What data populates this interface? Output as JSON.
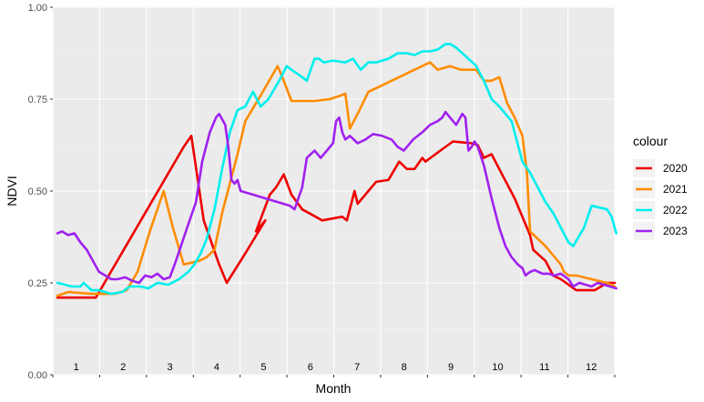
{
  "chart_data": {
    "type": "line",
    "xlabel": "Month",
    "ylabel": "NDVI",
    "ylim": [
      0,
      1
    ],
    "xlim": [
      0,
      365
    ],
    "y_ticks": [
      "0.00",
      "0.25",
      "0.50",
      "0.75",
      "1.00"
    ],
    "y_tick_values": [
      0,
      0.25,
      0.5,
      0.75,
      1.0
    ],
    "months": [
      "1",
      "2",
      "3",
      "4",
      "5",
      "6",
      "7",
      "8",
      "9",
      "10",
      "11",
      "12"
    ],
    "grid": true,
    "legend_title": "colour",
    "legend_position": "right",
    "series": [
      {
        "name": "2020",
        "color": "#ee0000",
        "points": [
          [
            3,
            0.21
          ],
          [
            15,
            0.21
          ],
          [
            28,
            0.21
          ],
          [
            60,
            0.44
          ],
          [
            85,
            0.62
          ],
          [
            90,
            0.65
          ],
          [
            98,
            0.42
          ],
          [
            108,
            0.3
          ],
          [
            113,
            0.25
          ],
          [
            125,
            0.33
          ],
          [
            138,
            0.42
          ],
          [
            132,
            0.39
          ],
          [
            141,
            0.49
          ],
          [
            145,
            0.51
          ],
          [
            150,
            0.545
          ],
          [
            155,
            0.49
          ],
          [
            162,
            0.45
          ],
          [
            175,
            0.42
          ],
          [
            188,
            0.43
          ],
          [
            191,
            0.42
          ],
          [
            196,
            0.5
          ],
          [
            198,
            0.465
          ],
          [
            205,
            0.5
          ],
          [
            210,
            0.525
          ],
          [
            218,
            0.53
          ],
          [
            225,
            0.58
          ],
          [
            230,
            0.56
          ],
          [
            235,
            0.56
          ],
          [
            240,
            0.59
          ],
          [
            242,
            0.58
          ],
          [
            255,
            0.62
          ],
          [
            260,
            0.635
          ],
          [
            272,
            0.63
          ],
          [
            276,
            0.625
          ],
          [
            280,
            0.59
          ],
          [
            285,
            0.6
          ],
          [
            290,
            0.56
          ],
          [
            300,
            0.48
          ],
          [
            310,
            0.38
          ],
          [
            312,
            0.34
          ],
          [
            320,
            0.31
          ],
          [
            325,
            0.27
          ],
          [
            330,
            0.26
          ],
          [
            340,
            0.23
          ],
          [
            352,
            0.23
          ],
          [
            360,
            0.25
          ],
          [
            365,
            0.25
          ]
        ]
      },
      {
        "name": "2021",
        "color": "#ff8c00",
        "points": [
          [
            3,
            0.215
          ],
          [
            10,
            0.225
          ],
          [
            25,
            0.22
          ],
          [
            40,
            0.22
          ],
          [
            48,
            0.23
          ],
          [
            55,
            0.28
          ],
          [
            63,
            0.39
          ],
          [
            72,
            0.5
          ],
          [
            78,
            0.4
          ],
          [
            85,
            0.3
          ],
          [
            95,
            0.31
          ],
          [
            100,
            0.32
          ],
          [
            105,
            0.34
          ],
          [
            110,
            0.44
          ],
          [
            120,
            0.6
          ],
          [
            125,
            0.69
          ],
          [
            135,
            0.76
          ],
          [
            146,
            0.84
          ],
          [
            150,
            0.8
          ],
          [
            155,
            0.745
          ],
          [
            163,
            0.745
          ],
          [
            170,
            0.745
          ],
          [
            180,
            0.75
          ],
          [
            187,
            0.76
          ],
          [
            190,
            0.765
          ],
          [
            193,
            0.67
          ],
          [
            198,
            0.71
          ],
          [
            205,
            0.77
          ],
          [
            210,
            0.78
          ],
          [
            225,
            0.81
          ],
          [
            240,
            0.84
          ],
          [
            245,
            0.85
          ],
          [
            250,
            0.83
          ],
          [
            258,
            0.84
          ],
          [
            265,
            0.83
          ],
          [
            270,
            0.83
          ],
          [
            275,
            0.83
          ],
          [
            280,
            0.8
          ],
          [
            285,
            0.8
          ],
          [
            290,
            0.81
          ],
          [
            295,
            0.74
          ],
          [
            300,
            0.7
          ],
          [
            305,
            0.65
          ],
          [
            308,
            0.55
          ],
          [
            310,
            0.39
          ],
          [
            320,
            0.35
          ],
          [
            330,
            0.3
          ],
          [
            332,
            0.28
          ],
          [
            335,
            0.27
          ],
          [
            340,
            0.27
          ],
          [
            350,
            0.26
          ],
          [
            360,
            0.25
          ],
          [
            365,
            0.24
          ]
        ]
      },
      {
        "name": "2022",
        "color": "#00eeee",
        "points": [
          [
            3,
            0.25
          ],
          [
            8,
            0.245
          ],
          [
            12,
            0.24
          ],
          [
            18,
            0.24
          ],
          [
            20,
            0.25
          ],
          [
            25,
            0.23
          ],
          [
            30,
            0.23
          ],
          [
            38,
            0.22
          ],
          [
            45,
            0.225
          ],
          [
            50,
            0.24
          ],
          [
            57,
            0.24
          ],
          [
            62,
            0.235
          ],
          [
            68,
            0.25
          ],
          [
            75,
            0.245
          ],
          [
            82,
            0.26
          ],
          [
            88,
            0.28
          ],
          [
            92,
            0.3
          ],
          [
            96,
            0.33
          ],
          [
            100,
            0.37
          ],
          [
            105,
            0.45
          ],
          [
            110,
            0.56
          ],
          [
            115,
            0.66
          ],
          [
            120,
            0.72
          ],
          [
            125,
            0.73
          ],
          [
            130,
            0.77
          ],
          [
            135,
            0.73
          ],
          [
            140,
            0.75
          ],
          [
            147,
            0.8
          ],
          [
            152,
            0.84
          ],
          [
            155,
            0.83
          ],
          [
            162,
            0.81
          ],
          [
            165,
            0.8
          ],
          [
            170,
            0.86
          ],
          [
            173,
            0.86
          ],
          [
            176,
            0.85
          ],
          [
            182,
            0.855
          ],
          [
            190,
            0.85
          ],
          [
            195,
            0.86
          ],
          [
            200,
            0.83
          ],
          [
            205,
            0.85
          ],
          [
            210,
            0.85
          ],
          [
            218,
            0.86
          ],
          [
            224,
            0.875
          ],
          [
            230,
            0.875
          ],
          [
            235,
            0.87
          ],
          [
            240,
            0.88
          ],
          [
            245,
            0.88
          ],
          [
            250,
            0.885
          ],
          [
            255,
            0.9
          ],
          [
            258,
            0.9
          ],
          [
            262,
            0.89
          ],
          [
            270,
            0.86
          ],
          [
            275,
            0.84
          ],
          [
            280,
            0.8
          ],
          [
            285,
            0.75
          ],
          [
            290,
            0.73
          ],
          [
            298,
            0.69
          ],
          [
            305,
            0.58
          ],
          [
            310,
            0.55
          ],
          [
            320,
            0.47
          ],
          [
            325,
            0.44
          ],
          [
            330,
            0.4
          ],
          [
            335,
            0.36
          ],
          [
            338,
            0.35
          ],
          [
            345,
            0.4
          ],
          [
            350,
            0.46
          ],
          [
            360,
            0.45
          ],
          [
            363,
            0.43
          ],
          [
            366,
            0.385
          ]
        ]
      },
      {
        "name": "2023",
        "color": "#a020f0",
        "points": [
          [
            3,
            0.385
          ],
          [
            6,
            0.39
          ],
          [
            10,
            0.38
          ],
          [
            14,
            0.385
          ],
          [
            18,
            0.36
          ],
          [
            22,
            0.34
          ],
          [
            26,
            0.31
          ],
          [
            30,
            0.28
          ],
          [
            34,
            0.27
          ],
          [
            38,
            0.26
          ],
          [
            42,
            0.26
          ],
          [
            47,
            0.265
          ],
          [
            52,
            0.255
          ],
          [
            56,
            0.25
          ],
          [
            60,
            0.27
          ],
          [
            64,
            0.265
          ],
          [
            68,
            0.275
          ],
          [
            72,
            0.26
          ],
          [
            76,
            0.265
          ],
          [
            80,
            0.31
          ],
          [
            84,
            0.36
          ],
          [
            88,
            0.41
          ],
          [
            93,
            0.47
          ],
          [
            97,
            0.58
          ],
          [
            102,
            0.66
          ],
          [
            106,
            0.7
          ],
          [
            108,
            0.71
          ],
          [
            112,
            0.68
          ],
          [
            114,
            0.62
          ],
          [
            116,
            0.53
          ],
          [
            118,
            0.52
          ],
          [
            120,
            0.53
          ],
          [
            122,
            0.5
          ],
          [
            130,
            0.49
          ],
          [
            138,
            0.48
          ],
          [
            146,
            0.47
          ],
          [
            154,
            0.46
          ],
          [
            157,
            0.45
          ],
          [
            162,
            0.51
          ],
          [
            165,
            0.59
          ],
          [
            170,
            0.61
          ],
          [
            174,
            0.59
          ],
          [
            178,
            0.61
          ],
          [
            182,
            0.63
          ],
          [
            184,
            0.69
          ],
          [
            186,
            0.7
          ],
          [
            188,
            0.66
          ],
          [
            190,
            0.64
          ],
          [
            193,
            0.65
          ],
          [
            198,
            0.63
          ],
          [
            203,
            0.64
          ],
          [
            208,
            0.655
          ],
          [
            214,
            0.65
          ],
          [
            220,
            0.64
          ],
          [
            224,
            0.62
          ],
          [
            228,
            0.61
          ],
          [
            234,
            0.64
          ],
          [
            240,
            0.66
          ],
          [
            245,
            0.68
          ],
          [
            250,
            0.69
          ],
          [
            253,
            0.7
          ],
          [
            255,
            0.715
          ],
          [
            258,
            0.7
          ],
          [
            262,
            0.68
          ],
          [
            266,
            0.71
          ],
          [
            268,
            0.7
          ],
          [
            270,
            0.61
          ],
          [
            272,
            0.62
          ],
          [
            274,
            0.635
          ],
          [
            276,
            0.62
          ],
          [
            280,
            0.57
          ],
          [
            285,
            0.48
          ],
          [
            290,
            0.4
          ],
          [
            294,
            0.35
          ],
          [
            298,
            0.32
          ],
          [
            302,
            0.3
          ],
          [
            305,
            0.29
          ],
          [
            307,
            0.27
          ],
          [
            310,
            0.28
          ],
          [
            313,
            0.285
          ],
          [
            318,
            0.275
          ],
          [
            322,
            0.275
          ],
          [
            326,
            0.27
          ],
          [
            330,
            0.275
          ],
          [
            335,
            0.26
          ],
          [
            338,
            0.24
          ],
          [
            342,
            0.25
          ],
          [
            346,
            0.245
          ],
          [
            350,
            0.24
          ],
          [
            354,
            0.25
          ],
          [
            358,
            0.245
          ],
          [
            362,
            0.24
          ],
          [
            366,
            0.235
          ]
        ]
      }
    ]
  }
}
